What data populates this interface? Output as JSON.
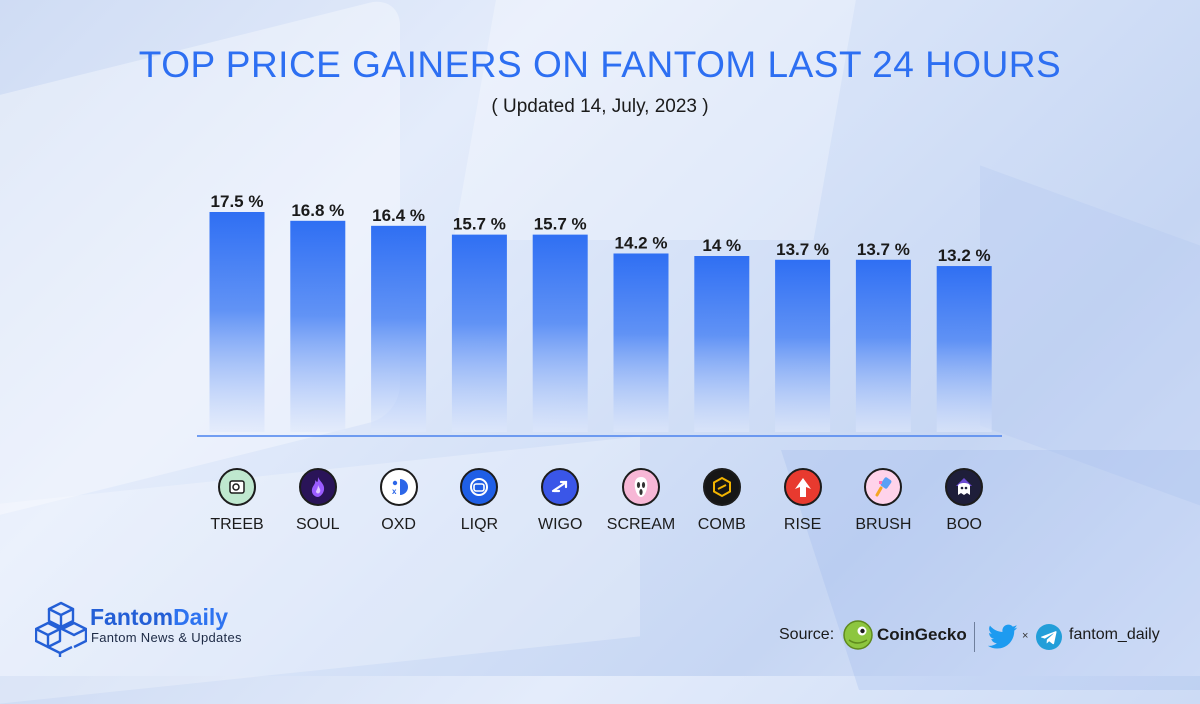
{
  "title": "TOP PRICE GAINERS ON FANTOM LAST 24 HOURS",
  "subtitle": "( Updated 14, July, 2023 )",
  "chart_data": {
    "type": "bar",
    "title": "TOP PRICE GAINERS ON FANTOM LAST 24 HOURS",
    "subtitle": "( Updated 14, July, 2023 )",
    "categories": [
      "TREEB",
      "SOUL",
      "OXD",
      "LIQR",
      "WIGO",
      "SCREAM",
      "COMB",
      "RISE",
      "BRUSH",
      "BOO"
    ],
    "values": [
      17.5,
      16.8,
      16.4,
      15.7,
      15.7,
      14.2,
      14,
      13.7,
      13.7,
      13.2
    ],
    "value_labels": [
      "17.5 %",
      "16.8 %",
      "16.4 %",
      "15.7 %",
      "15.7 %",
      "14.2 %",
      "14 %",
      "13.7 %",
      "13.7 %",
      "13.2 %"
    ],
    "xlabel": "",
    "ylabel": "",
    "ylim": [
      0,
      17.5
    ],
    "grid": false,
    "legend": "none",
    "bar_color_top": "#2f6ff3",
    "bar_color_bottom": "#dfe8fb",
    "baseline_color": "#4a82ee"
  },
  "tokens": [
    {
      "name": "TREEB",
      "icon": "treeb-logo-icon",
      "bg": "#bfe8cf",
      "fg": "#1c1c1c"
    },
    {
      "name": "SOUL",
      "icon": "soul-flame-icon",
      "bg": "#2a1458",
      "fg": "#b67bff"
    },
    {
      "name": "OXD",
      "icon": "oxd-logo-icon",
      "bg": "#ffffff",
      "fg": "#2c66e8"
    },
    {
      "name": "LIQR",
      "icon": "liqr-logo-icon",
      "bg": "#1f5fe6",
      "fg": "#ffffff"
    },
    {
      "name": "WIGO",
      "icon": "wigo-arrows-icon",
      "bg": "#3a56e8",
      "fg": "#ffffff"
    },
    {
      "name": "SCREAM",
      "icon": "scream-mask-icon",
      "bg": "#f7b7d6",
      "fg": "#ffffff"
    },
    {
      "name": "COMB",
      "icon": "comb-hexagon-icon",
      "bg": "#161616",
      "fg": "#f1b300"
    },
    {
      "name": "RISE",
      "icon": "rise-arrow-icon",
      "bg": "#e83a2f",
      "fg": "#ffffff"
    },
    {
      "name": "BRUSH",
      "icon": "brush-icon",
      "bg": "#ffd3ea",
      "fg": "#5aa0f5"
    },
    {
      "name": "BOO",
      "icon": "boo-ghost-icon",
      "bg": "#1e1e3a",
      "fg": "#ffffff"
    }
  ],
  "brand": {
    "name_part1": "Fantom",
    "name_part2": "Daily",
    "tagline": "Fantom News & Updates",
    "color": "#245fd6"
  },
  "footer": {
    "source_label": "Source:",
    "source_name": "CoinGecko",
    "separator": "×",
    "handle": "fantom_daily",
    "twitter_icon": "twitter-bird-icon",
    "telegram_icon": "telegram-plane-icon",
    "coingecko_icon": "coingecko-logo-icon"
  }
}
